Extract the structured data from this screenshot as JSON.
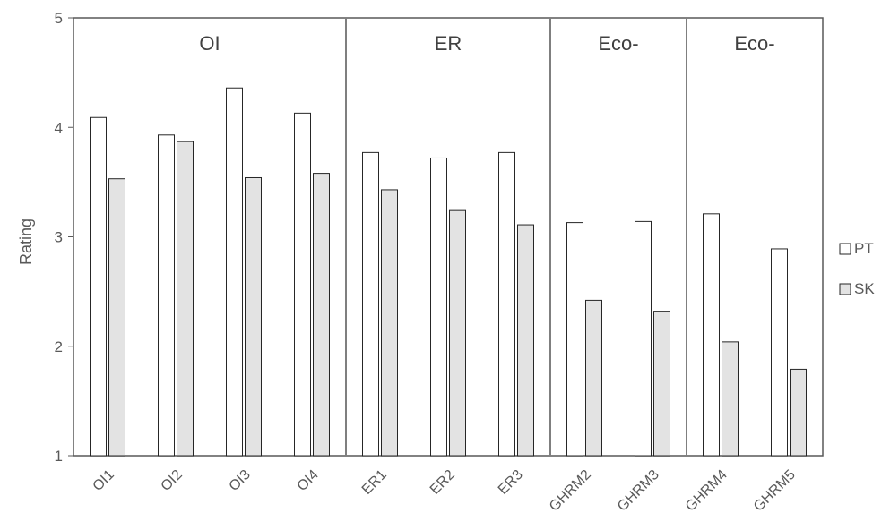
{
  "chart_data": {
    "type": "bar",
    "ylabel": "Rating",
    "ylim": [
      1,
      5
    ],
    "yticks": [
      1,
      2,
      3,
      4,
      5
    ],
    "categories": [
      "OI1",
      "OI2",
      "OI3",
      "OI4",
      "ER1",
      "ER2",
      "ER3",
      "GHRM2",
      "GHRM3",
      "GHRM4",
      "GHRM5"
    ],
    "series": [
      {
        "name": "PT",
        "color": "#ffffff",
        "values": [
          4.09,
          3.93,
          4.36,
          4.13,
          3.77,
          3.72,
          3.77,
          3.13,
          3.14,
          3.21,
          2.89
        ]
      },
      {
        "name": "SK",
        "color": "#e3e3e3",
        "values": [
          3.53,
          3.87,
          3.54,
          3.58,
          3.43,
          3.24,
          3.11,
          2.42,
          2.32,
          2.04,
          1.79
        ]
      }
    ],
    "groups": [
      {
        "label": "OI",
        "start": 0,
        "end": 3
      },
      {
        "label": "ER",
        "start": 4,
        "end": 6
      },
      {
        "label": "Eco-",
        "start": 7,
        "end": 8
      },
      {
        "label": "Eco-",
        "start": 9,
        "end": 10
      }
    ],
    "legend": {
      "placement": "right"
    },
    "grid": false
  }
}
